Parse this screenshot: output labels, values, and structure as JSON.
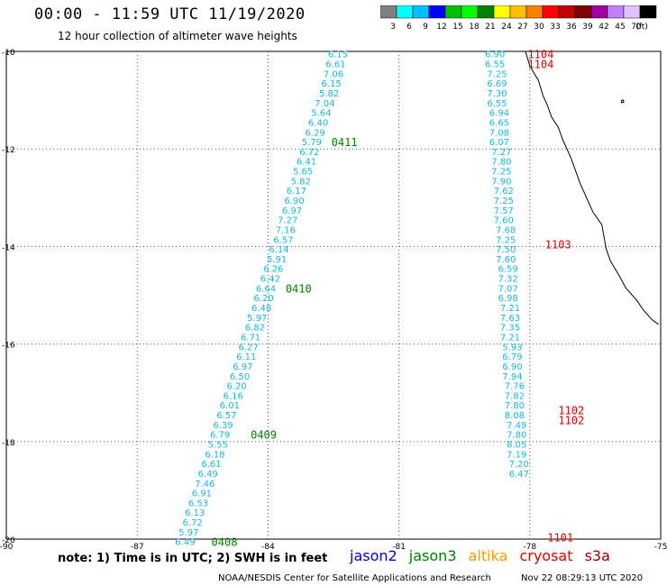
{
  "title": "00:00 - 11:59 UTC 11/19/2020",
  "subtitle": "12 hour collection of altimeter wave heights",
  "scale": {
    "labels": [
      "3",
      "6",
      "9",
      "12",
      "15",
      "18",
      "21",
      "24",
      "27",
      "30",
      "33",
      "36",
      "39",
      "42",
      "45",
      "70",
      "(ft)"
    ],
    "colors": [
      "#808080",
      "#00ffff",
      "#00c0ff",
      "#0000ff",
      "#00c000",
      "#00ff00",
      "#008000",
      "#ffff00",
      "#ffc000",
      "#ff8000",
      "#ff0000",
      "#c00000",
      "#800000",
      "#a000a0",
      "#c080ff",
      "#e0c0ff",
      "#000000"
    ]
  },
  "axes": {
    "x_ticks": [
      "-90",
      "-87",
      "-84",
      "-81",
      "-78",
      "-75"
    ],
    "y_ticks": [
      "-10",
      "-12",
      "-14",
      "-16",
      "-18",
      "-20"
    ],
    "lon_range": [
      -90,
      -75
    ],
    "lat_range": [
      -20,
      -10
    ]
  },
  "chart_data": {
    "type": "scatter",
    "tracks": [
      {
        "color": "#19b5e6",
        "points": [
          {
            "lon": -82.4,
            "lat": -10.05,
            "swh": "6.15"
          },
          {
            "lon": -82.45,
            "lat": -10.25,
            "swh": "6.61"
          },
          {
            "lon": -82.5,
            "lat": -10.45,
            "swh": "7.06"
          },
          {
            "lon": -82.55,
            "lat": -10.65,
            "swh": "6.15"
          },
          {
            "lon": -82.6,
            "lat": -10.85,
            "swh": "5.82"
          },
          {
            "lon": -82.7,
            "lat": -11.05,
            "swh": "7.04"
          },
          {
            "lon": -82.78,
            "lat": -11.25,
            "swh": "5.64"
          },
          {
            "lon": -82.85,
            "lat": -11.45,
            "swh": "6.40"
          },
          {
            "lon": -82.92,
            "lat": -11.65,
            "swh": "6.29"
          },
          {
            "lon": -83.0,
            "lat": -11.85,
            "swh": "5.79"
          },
          {
            "lon": -83.05,
            "lat": -12.05,
            "swh": "6.72"
          },
          {
            "lon": -83.12,
            "lat": -12.25,
            "swh": "6.41"
          },
          {
            "lon": -83.2,
            "lat": -12.45,
            "swh": "5.65"
          },
          {
            "lon": -83.25,
            "lat": -12.65,
            "swh": "5.82"
          },
          {
            "lon": -83.35,
            "lat": -12.85,
            "swh": "6.17"
          },
          {
            "lon": -83.4,
            "lat": -13.05,
            "swh": "6.90"
          },
          {
            "lon": -83.45,
            "lat": -13.25,
            "swh": "6.97"
          },
          {
            "lon": -83.55,
            "lat": -13.45,
            "swh": "7.27"
          },
          {
            "lon": -83.6,
            "lat": -13.65,
            "swh": "7.16"
          },
          {
            "lon": -83.65,
            "lat": -13.85,
            "swh": "6.57"
          },
          {
            "lon": -83.75,
            "lat": -14.05,
            "swh": "6.14"
          },
          {
            "lon": -83.8,
            "lat": -14.25,
            "swh": "5.91"
          },
          {
            "lon": -83.88,
            "lat": -14.45,
            "swh": "6.26"
          },
          {
            "lon": -83.95,
            "lat": -14.65,
            "swh": "6.42"
          },
          {
            "lon": -84.05,
            "lat": -14.85,
            "swh": "6.64"
          },
          {
            "lon": -84.1,
            "lat": -15.05,
            "swh": "6.20"
          },
          {
            "lon": -84.15,
            "lat": -15.25,
            "swh": "6.48"
          },
          {
            "lon": -84.25,
            "lat": -15.45,
            "swh": "5.97"
          },
          {
            "lon": -84.3,
            "lat": -15.65,
            "swh": "6.82"
          },
          {
            "lon": -84.4,
            "lat": -15.85,
            "swh": "6.71"
          },
          {
            "lon": -84.45,
            "lat": -16.05,
            "swh": "6.27"
          },
          {
            "lon": -84.5,
            "lat": -16.25,
            "swh": "6.11"
          },
          {
            "lon": -84.58,
            "lat": -16.45,
            "swh": "6.97"
          },
          {
            "lon": -84.65,
            "lat": -16.65,
            "swh": "6.50"
          },
          {
            "lon": -84.72,
            "lat": -16.85,
            "swh": "6.20"
          },
          {
            "lon": -84.8,
            "lat": -17.05,
            "swh": "6.16"
          },
          {
            "lon": -84.88,
            "lat": -17.25,
            "swh": "6.01"
          },
          {
            "lon": -84.95,
            "lat": -17.45,
            "swh": "6.57"
          },
          {
            "lon": -85.03,
            "lat": -17.65,
            "swh": "6.39"
          },
          {
            "lon": -85.1,
            "lat": -17.85,
            "swh": "6.79"
          },
          {
            "lon": -85.15,
            "lat": -18.05,
            "swh": "5.55"
          },
          {
            "lon": -85.22,
            "lat": -18.25,
            "swh": "6.18"
          },
          {
            "lon": -85.3,
            "lat": -18.45,
            "swh": "6.61"
          },
          {
            "lon": -85.38,
            "lat": -18.65,
            "swh": "6.49"
          },
          {
            "lon": -85.45,
            "lat": -18.85,
            "swh": "7.46"
          },
          {
            "lon": -85.52,
            "lat": -19.05,
            "swh": "6.91"
          },
          {
            "lon": -85.6,
            "lat": -19.25,
            "swh": "6.53"
          },
          {
            "lon": -85.68,
            "lat": -19.45,
            "swh": "6.13"
          },
          {
            "lon": -85.73,
            "lat": -19.65,
            "swh": "6.72"
          },
          {
            "lon": -85.82,
            "lat": -19.85,
            "swh": "5.97"
          },
          {
            "lon": -85.9,
            "lat": -20.05,
            "swh": "6.49"
          }
        ]
      },
      {
        "color": "#19b5e6",
        "points": [
          {
            "lon": -78.8,
            "lat": -10.05,
            "swh": "6.90"
          },
          {
            "lon": -78.8,
            "lat": -10.25,
            "swh": "6.55"
          },
          {
            "lon": -78.75,
            "lat": -10.45,
            "swh": "7.25"
          },
          {
            "lon": -78.75,
            "lat": -10.65,
            "swh": "6.69"
          },
          {
            "lon": -78.75,
            "lat": -10.85,
            "swh": "7.30"
          },
          {
            "lon": -78.75,
            "lat": -11.05,
            "swh": "6.55"
          },
          {
            "lon": -78.7,
            "lat": -11.25,
            "swh": "6.94"
          },
          {
            "lon": -78.7,
            "lat": -11.45,
            "swh": "6.65"
          },
          {
            "lon": -78.7,
            "lat": -11.65,
            "swh": "7.08"
          },
          {
            "lon": -78.7,
            "lat": -11.85,
            "swh": "6.07"
          },
          {
            "lon": -78.65,
            "lat": -12.05,
            "swh": "7.27"
          },
          {
            "lon": -78.65,
            "lat": -12.25,
            "swh": "7.80"
          },
          {
            "lon": -78.65,
            "lat": -12.45,
            "swh": "7.25"
          },
          {
            "lon": -78.65,
            "lat": -12.65,
            "swh": "7.90"
          },
          {
            "lon": -78.6,
            "lat": -12.85,
            "swh": "7.62"
          },
          {
            "lon": -78.6,
            "lat": -13.05,
            "swh": "7.25"
          },
          {
            "lon": -78.6,
            "lat": -13.25,
            "swh": "7.57"
          },
          {
            "lon": -78.6,
            "lat": -13.45,
            "swh": "7.60"
          },
          {
            "lon": -78.55,
            "lat": -13.65,
            "swh": "7.68"
          },
          {
            "lon": -78.55,
            "lat": -13.85,
            "swh": "7.25"
          },
          {
            "lon": -78.55,
            "lat": -14.05,
            "swh": "7.50"
          },
          {
            "lon": -78.55,
            "lat": -14.25,
            "swh": "7.60"
          },
          {
            "lon": -78.5,
            "lat": -14.45,
            "swh": "6.59"
          },
          {
            "lon": -78.5,
            "lat": -14.65,
            "swh": "7.32"
          },
          {
            "lon": -78.5,
            "lat": -14.85,
            "swh": "7.07"
          },
          {
            "lon": -78.5,
            "lat": -15.05,
            "swh": "6.98"
          },
          {
            "lon": -78.45,
            "lat": -15.25,
            "swh": "7.21"
          },
          {
            "lon": -78.45,
            "lat": -15.45,
            "swh": "7.63"
          },
          {
            "lon": -78.45,
            "lat": -15.65,
            "swh": "7.35"
          },
          {
            "lon": -78.45,
            "lat": -15.85,
            "swh": "7.21"
          },
          {
            "lon": -78.4,
            "lat": -16.05,
            "swh": "5.93"
          },
          {
            "lon": -78.4,
            "lat": -16.25,
            "swh": "6.79"
          },
          {
            "lon": -78.4,
            "lat": -16.45,
            "swh": "6.90"
          },
          {
            "lon": -78.4,
            "lat": -16.65,
            "swh": "7.94"
          },
          {
            "lon": -78.35,
            "lat": -16.85,
            "swh": "7.76"
          },
          {
            "lon": -78.35,
            "lat": -17.05,
            "swh": "7.82"
          },
          {
            "lon": -78.35,
            "lat": -17.25,
            "swh": "7.80"
          },
          {
            "lon": -78.35,
            "lat": -17.45,
            "swh": "8.08"
          },
          {
            "lon": -78.3,
            "lat": -17.65,
            "swh": "7.49"
          },
          {
            "lon": -78.3,
            "lat": -17.85,
            "swh": "7.80"
          },
          {
            "lon": -78.3,
            "lat": -18.05,
            "swh": "8.05"
          },
          {
            "lon": -78.3,
            "lat": -18.25,
            "swh": "7.19"
          },
          {
            "lon": -78.25,
            "lat": -18.45,
            "swh": "7.20"
          },
          {
            "lon": -78.25,
            "lat": -18.65,
            "swh": "6.47"
          }
        ]
      }
    ],
    "time_labels": [
      {
        "text": "0411",
        "color": "#008000",
        "lon": -82.25,
        "lat": -11.85
      },
      {
        "text": "0410",
        "color": "#008000",
        "lon": -83.3,
        "lat": -14.85
      },
      {
        "text": "0409",
        "color": "#008000",
        "lon": -84.1,
        "lat": -17.85
      },
      {
        "text": "0408",
        "color": "#008000",
        "lon": -85.0,
        "lat": -20.05
      },
      {
        "text": "1104",
        "color": "#e00000",
        "lon": -77.75,
        "lat": -10.05
      },
      {
        "text": "1104",
        "color": "#e00000",
        "lon": -77.75,
        "lat": -10.25
      },
      {
        "text": "1103",
        "color": "#e00000",
        "lon": -77.35,
        "lat": -13.95
      },
      {
        "text": "1102",
        "color": "#e00000",
        "lon": -77.05,
        "lat": -17.35
      },
      {
        "text": "1102",
        "color": "#e00000",
        "lon": -77.05,
        "lat": -17.55
      },
      {
        "text": "1101",
        "color": "#e00000",
        "lon": -77.3,
        "lat": -19.95
      }
    ],
    "coastline": [
      [
        -78.1,
        -10.0
      ],
      [
        -78.0,
        -10.3
      ],
      [
        -77.8,
        -10.6
      ],
      [
        -77.7,
        -10.9
      ],
      [
        -77.6,
        -11.1
      ],
      [
        -77.5,
        -11.35
      ],
      [
        -77.35,
        -11.55
      ],
      [
        -77.25,
        -11.8
      ],
      [
        -77.15,
        -12.0
      ],
      [
        -77.05,
        -12.2
      ],
      [
        -76.95,
        -12.45
      ],
      [
        -76.85,
        -12.7
      ],
      [
        -76.7,
        -13.0
      ],
      [
        -76.55,
        -13.3
      ],
      [
        -76.35,
        -13.55
      ],
      [
        -76.3,
        -13.8
      ],
      [
        -76.25,
        -14.05
      ],
      [
        -76.15,
        -14.3
      ],
      [
        -75.95,
        -14.6
      ],
      [
        -75.8,
        -14.85
      ],
      [
        -75.55,
        -15.1
      ],
      [
        -75.4,
        -15.3
      ],
      [
        -75.2,
        -15.5
      ],
      [
        -75.05,
        -15.6
      ]
    ],
    "island": [
      [
        -75.9,
        -11.0
      ],
      [
        -75.85,
        -11.0
      ],
      [
        -75.85,
        -11.05
      ],
      [
        -75.9,
        -11.05
      ],
      [
        -75.9,
        -11.0
      ]
    ]
  },
  "legend": {
    "note": "note: 1) Time is in UTC; 2) SWH is in feet",
    "missions": [
      {
        "name": "jason2",
        "color": "#0000d0"
      },
      {
        "name": "jason3",
        "color": "#008000"
      },
      {
        "name": "altika",
        "color": "#ff9900"
      },
      {
        "name": "cryosat",
        "color": "#e00000"
      },
      {
        "name": "s3a",
        "color": "#a00000"
      }
    ]
  },
  "footer": {
    "credit": "NOAA/NESDIS Center for Satellite Applications and Research",
    "timestamp": "Nov 22 08:29:13 UTC 2020"
  }
}
